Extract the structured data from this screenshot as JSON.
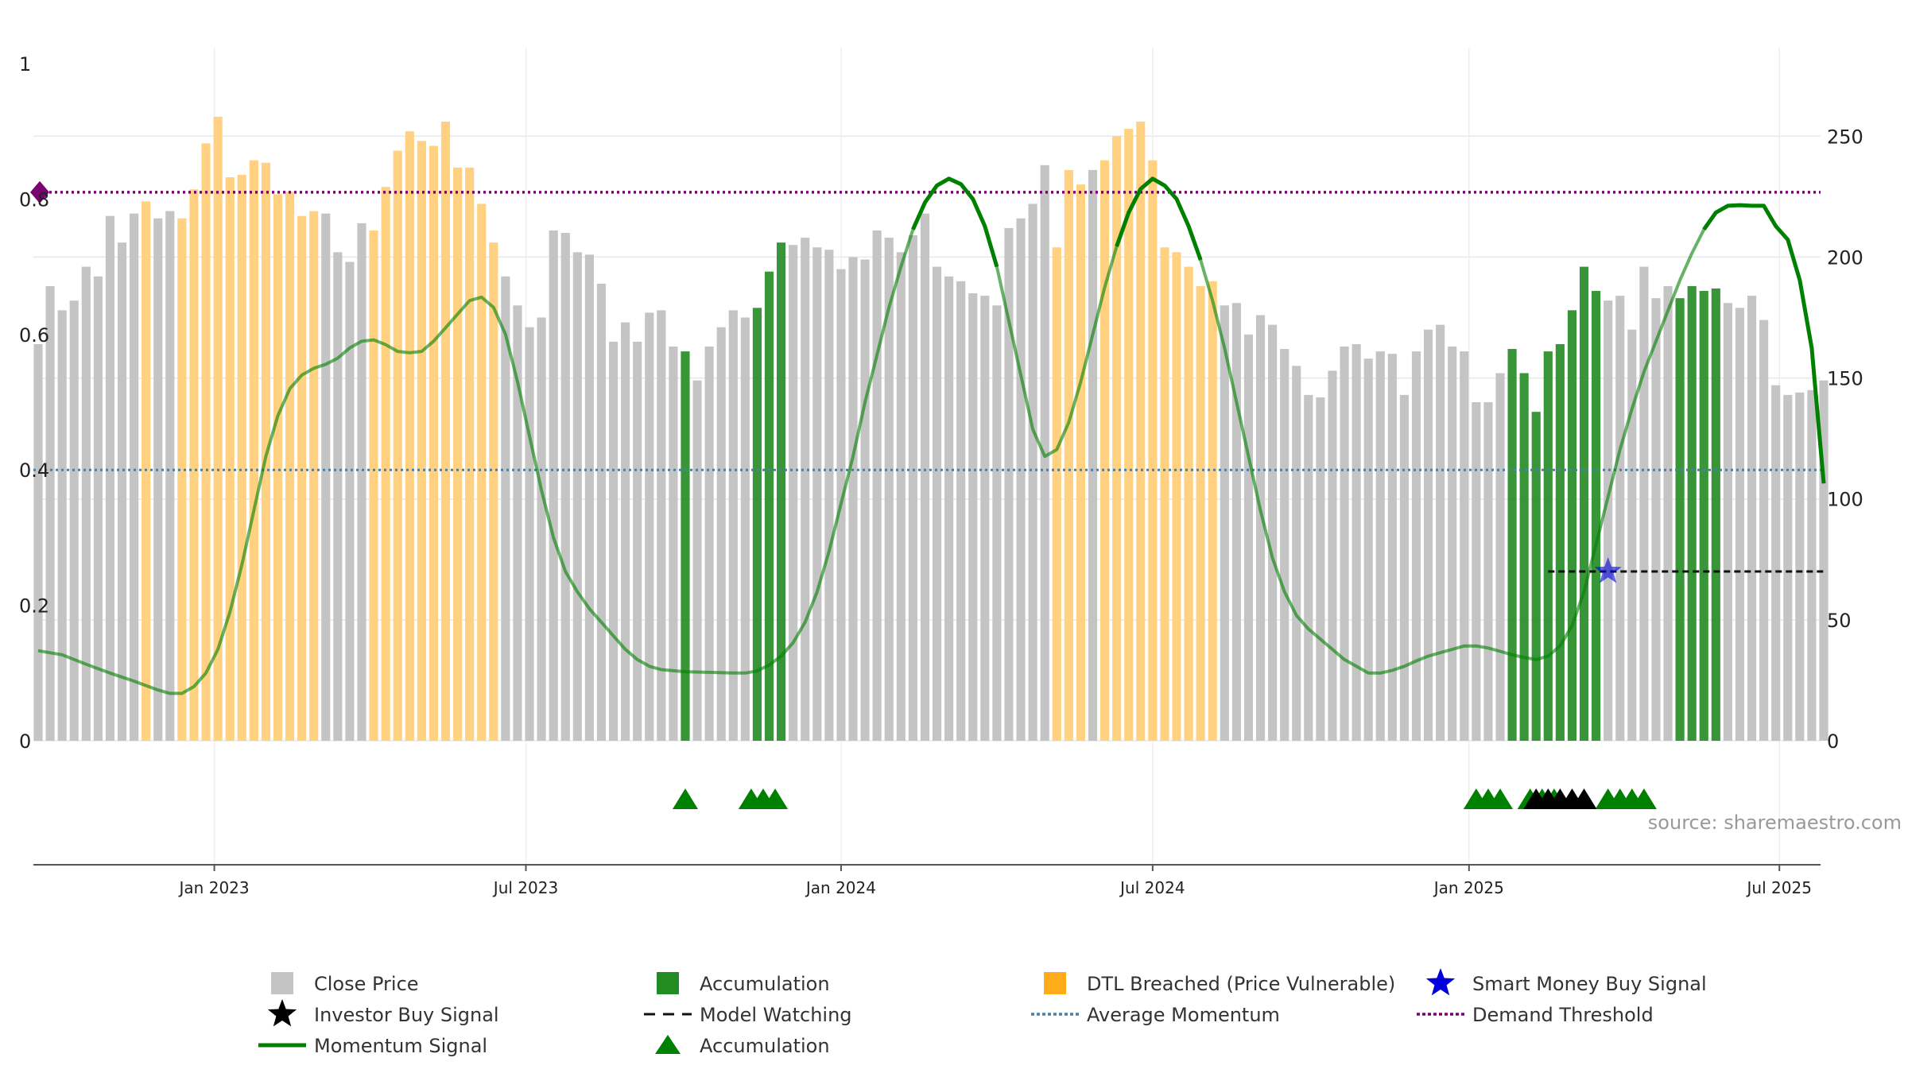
{
  "source_label": "source: sharemaestro.com",
  "colors": {
    "price_bar": "#c4c4c4",
    "accumulation": "#228b22",
    "dtl_breached": "#ffd180",
    "momentum": "#008000",
    "average_momentum": "#4a7fa6",
    "demand_threshold": "#7b0074",
    "smart_money": "#0000dd",
    "investor": "#000000"
  },
  "legend": [
    {
      "label": "Close Price",
      "symbol": "gray-square-icon"
    },
    {
      "label": "Accumulation",
      "symbol": "green-square-icon"
    },
    {
      "label": "DTL Breached (Price Vulnerable)",
      "symbol": "orange-square-icon"
    },
    {
      "label": "Smart Money Buy Signal",
      "symbol": "blue-star-icon"
    },
    {
      "label": "Investor Buy Signal",
      "symbol": "black-star-icon"
    },
    {
      "label": "Model Watching",
      "symbol": "black-dashed-line-icon"
    },
    {
      "label": "Average Momentum",
      "symbol": "blue-dotted-line-icon"
    },
    {
      "label": "Demand Threshold",
      "symbol": "purple-dotted-line-icon"
    },
    {
      "label": "Momentum Signal",
      "symbol": "green-line-icon"
    },
    {
      "label": "Accumulation",
      "symbol": "green-triangle-icon"
    }
  ],
  "chart_data": {
    "type": "bar",
    "left_axis": {
      "ticks": [
        "0",
        "0.2",
        "0.4",
        "0.6",
        "0.8",
        "1"
      ],
      "range": [
        0,
        1
      ]
    },
    "right_axis": {
      "ticks": [
        "0",
        "50",
        "100",
        "150",
        "200",
        "250"
      ],
      "range": [
        0,
        280
      ]
    },
    "x_axis": {
      "ticks": [
        {
          "label": "Jan 2023",
          "week": 14.7
        },
        {
          "label": "Jul 2023",
          "week": 40.7
        },
        {
          "label": "Jan 2024",
          "week": 67
        },
        {
          "label": "Jul 2024",
          "week": 93
        },
        {
          "label": "Jan 2025",
          "week": 119.4
        },
        {
          "label": "Jul 2025",
          "week": 145.3
        }
      ]
    },
    "weekly_close": [
      164,
      188,
      178,
      182,
      196,
      192,
      217,
      206,
      218,
      223,
      216,
      219,
      216,
      228,
      247,
      258,
      233,
      234,
      240,
      239,
      226,
      227,
      217,
      219,
      218,
      202,
      198,
      214,
      211,
      229,
      244,
      252,
      248,
      246,
      256,
      237,
      237,
      222,
      206,
      192,
      180,
      171,
      175,
      211,
      210,
      202,
      201,
      189,
      165,
      173,
      165,
      177,
      178,
      163,
      161,
      149,
      163,
      171,
      178,
      175,
      179,
      194,
      206,
      205,
      208,
      204,
      203,
      195,
      200,
      199,
      211,
      208,
      202,
      209,
      218,
      196,
      192,
      190,
      185,
      184,
      180,
      212,
      216,
      222,
      238,
      204,
      236,
      230,
      236,
      240,
      250,
      253,
      256,
      240,
      204,
      202,
      196,
      188,
      190,
      180,
      181,
      168,
      176,
      172,
      162,
      155,
      143,
      142,
      153,
      163,
      164,
      158,
      161,
      160,
      143,
      161,
      170,
      172,
      163,
      161,
      140,
      140,
      152,
      162,
      152,
      136,
      161,
      164,
      178,
      196,
      186,
      182,
      184,
      170,
      196,
      183,
      188,
      183,
      188,
      186,
      187,
      181,
      179,
      184,
      174,
      147,
      143,
      144,
      145,
      149
    ],
    "bar_status": [
      "p",
      "p",
      "p",
      "p",
      "p",
      "p",
      "p",
      "p",
      "p",
      "d",
      "p",
      "p",
      "d",
      "d",
      "d",
      "d",
      "d",
      "d",
      "d",
      "d",
      "d",
      "d",
      "d",
      "d",
      "p",
      "p",
      "p",
      "p",
      "d",
      "d",
      "d",
      "d",
      "d",
      "d",
      "d",
      "d",
      "d",
      "d",
      "d",
      "p",
      "p",
      "p",
      "p",
      "p",
      "p",
      "p",
      "p",
      "p",
      "p",
      "p",
      "p",
      "p",
      "p",
      "p",
      "a",
      "p",
      "p",
      "p",
      "p",
      "p",
      "a",
      "a",
      "a",
      "p",
      "p",
      "p",
      "p",
      "p",
      "p",
      "p",
      "p",
      "p",
      "p",
      "p",
      "p",
      "p",
      "p",
      "p",
      "p",
      "p",
      "p",
      "p",
      "p",
      "p",
      "p",
      "d",
      "d",
      "d",
      "p",
      "d",
      "d",
      "d",
      "d",
      "d",
      "d",
      "d",
      "d",
      "d",
      "d",
      "p",
      "p",
      "p",
      "p",
      "p",
      "p",
      "p",
      "p",
      "p",
      "p",
      "p",
      "p",
      "p",
      "p",
      "p",
      "p",
      "p",
      "p",
      "p",
      "p",
      "p",
      "p",
      "p",
      "p",
      "a",
      "a",
      "a",
      "a",
      "a",
      "a",
      "a",
      "a",
      "p",
      "p",
      "p",
      "p",
      "p",
      "p",
      "a",
      "a",
      "a",
      "a",
      "p",
      "p",
      "p",
      "p",
      "p",
      "p",
      "p",
      "p",
      "p",
      "p",
      "p",
      "p",
      "p",
      "p",
      "p",
      "p",
      "p",
      "p",
      "p",
      "p",
      "p",
      "p",
      "p"
    ],
    "momentum_signal": [
      [
        0,
        0.133
      ],
      [
        2,
        0.127
      ],
      [
        4,
        0.113
      ],
      [
        6,
        0.1
      ],
      [
        8,
        0.088
      ],
      [
        10,
        0.075
      ],
      [
        11,
        0.07
      ],
      [
        12,
        0.07
      ],
      [
        13,
        0.08
      ],
      [
        14,
        0.1
      ],
      [
        15,
        0.135
      ],
      [
        16,
        0.19
      ],
      [
        17,
        0.26
      ],
      [
        18,
        0.34
      ],
      [
        19,
        0.42
      ],
      [
        20,
        0.48
      ],
      [
        21,
        0.52
      ],
      [
        22,
        0.54
      ],
      [
        23,
        0.55
      ],
      [
        24,
        0.556
      ],
      [
        25,
        0.565
      ],
      [
        26,
        0.58
      ],
      [
        27,
        0.59
      ],
      [
        28,
        0.592
      ],
      [
        29,
        0.585
      ],
      [
        30,
        0.575
      ],
      [
        31,
        0.573
      ],
      [
        32,
        0.575
      ],
      [
        33,
        0.59
      ],
      [
        34,
        0.61
      ],
      [
        35,
        0.63
      ],
      [
        36,
        0.65
      ],
      [
        37,
        0.655
      ],
      [
        38,
        0.64
      ],
      [
        39,
        0.6
      ],
      [
        40,
        0.53
      ],
      [
        41,
        0.45
      ],
      [
        42,
        0.37
      ],
      [
        43,
        0.3
      ],
      [
        44,
        0.25
      ],
      [
        45,
        0.22
      ],
      [
        46,
        0.195
      ],
      [
        47,
        0.175
      ],
      [
        48,
        0.155
      ],
      [
        49,
        0.135
      ],
      [
        50,
        0.12
      ],
      [
        51,
        0.11
      ],
      [
        52,
        0.105
      ],
      [
        54,
        0.102
      ],
      [
        56,
        0.101
      ],
      [
        58,
        0.1
      ],
      [
        59,
        0.1
      ],
      [
        60,
        0.103
      ],
      [
        61,
        0.112
      ],
      [
        62,
        0.125
      ],
      [
        63,
        0.145
      ],
      [
        64,
        0.175
      ],
      [
        65,
        0.22
      ],
      [
        66,
        0.28
      ],
      [
        67,
        0.35
      ],
      [
        68,
        0.42
      ],
      [
        69,
        0.5
      ],
      [
        70,
        0.57
      ],
      [
        71,
        0.64
      ],
      [
        72,
        0.7
      ],
      [
        73,
        0.755
      ],
      [
        74,
        0.795
      ],
      [
        75,
        0.82
      ],
      [
        76,
        0.83
      ],
      [
        77,
        0.822
      ],
      [
        78,
        0.8
      ],
      [
        79,
        0.76
      ],
      [
        80,
        0.7
      ],
      [
        81,
        0.62
      ],
      [
        82,
        0.54
      ],
      [
        83,
        0.46
      ],
      [
        84,
        0.42
      ],
      [
        85,
        0.43
      ],
      [
        86,
        0.47
      ],
      [
        87,
        0.53
      ],
      [
        88,
        0.6
      ],
      [
        89,
        0.67
      ],
      [
        90,
        0.73
      ],
      [
        91,
        0.78
      ],
      [
        92,
        0.815
      ],
      [
        93,
        0.83
      ],
      [
        94,
        0.82
      ],
      [
        95,
        0.8
      ],
      [
        96,
        0.76
      ],
      [
        97,
        0.71
      ],
      [
        98,
        0.65
      ],
      [
        99,
        0.58
      ],
      [
        100,
        0.5
      ],
      [
        101,
        0.42
      ],
      [
        102,
        0.34
      ],
      [
        103,
        0.27
      ],
      [
        104,
        0.22
      ],
      [
        105,
        0.185
      ],
      [
        106,
        0.165
      ],
      [
        107,
        0.15
      ],
      [
        108,
        0.135
      ],
      [
        109,
        0.12
      ],
      [
        110,
        0.11
      ],
      [
        111,
        0.1
      ],
      [
        112,
        0.1
      ],
      [
        113,
        0.104
      ],
      [
        114,
        0.11
      ],
      [
        115,
        0.118
      ],
      [
        116,
        0.125
      ],
      [
        117,
        0.13
      ],
      [
        118,
        0.135
      ],
      [
        119,
        0.14
      ],
      [
        120,
        0.14
      ],
      [
        121,
        0.137
      ],
      [
        122,
        0.132
      ],
      [
        123,
        0.127
      ],
      [
        124,
        0.123
      ],
      [
        125,
        0.12
      ],
      [
        126,
        0.125
      ],
      [
        127,
        0.14
      ],
      [
        128,
        0.17
      ],
      [
        129,
        0.22
      ],
      [
        130,
        0.29
      ],
      [
        131,
        0.36
      ],
      [
        132,
        0.43
      ],
      [
        133,
        0.49
      ],
      [
        134,
        0.545
      ],
      [
        135,
        0.59
      ],
      [
        136,
        0.635
      ],
      [
        137,
        0.68
      ],
      [
        138,
        0.72
      ],
      [
        139,
        0.755
      ],
      [
        140,
        0.78
      ],
      [
        141,
        0.79
      ],
      [
        142,
        0.791
      ],
      [
        143,
        0.79
      ],
      [
        144,
        0.79
      ],
      [
        145,
        0.76
      ],
      [
        146,
        0.74
      ],
      [
        147,
        0.68
      ],
      [
        148,
        0.58
      ],
      [
        149,
        0.38
      ]
    ],
    "momentum_solid_ranges": [
      [
        73,
        80
      ],
      [
        90,
        97
      ],
      [
        139,
        149
      ]
    ],
    "average_momentum": 0.4,
    "demand_threshold": 0.81,
    "model_watching": {
      "value": 0.25,
      "from_week": 126,
      "to_week": 149
    },
    "smart_money_buy": [
      {
        "week": 131,
        "value": 0.25
      }
    ],
    "accumulation_markers": [
      54,
      59.5,
      60.5,
      61.5,
      120,
      121,
      122,
      124.5,
      125.5,
      126.5,
      131,
      132,
      133,
      134
    ],
    "investor_buy_markers": [
      125,
      126,
      127,
      128,
      129
    ]
  }
}
